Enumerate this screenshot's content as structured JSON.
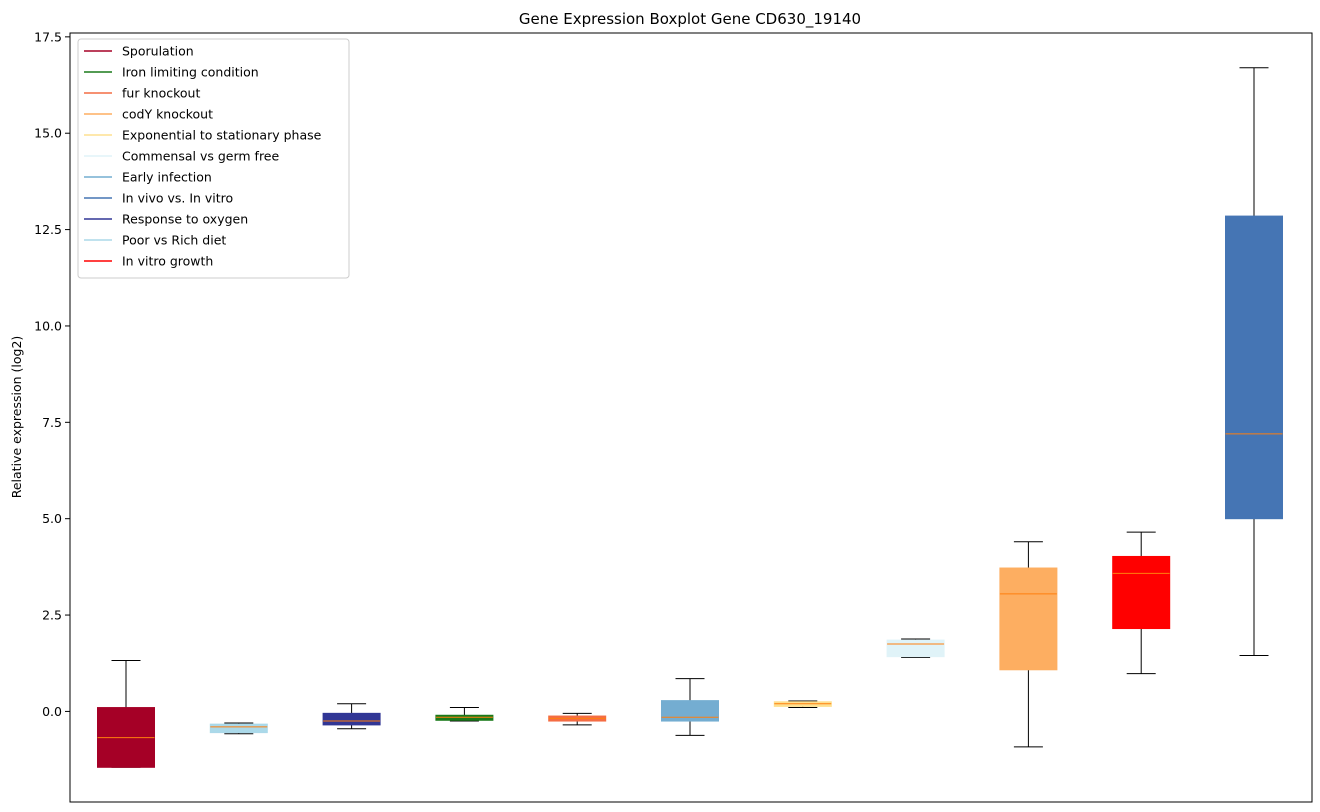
{
  "chart_data": {
    "type": "boxplot",
    "title": "Gene Expression Boxplot Gene CD630_19140",
    "xlabel": "",
    "ylabel": "Relative expression (log2)",
    "ylim": [
      -2.35,
      17.6
    ],
    "yticks": [
      0.0,
      2.5,
      5.0,
      7.5,
      10.0,
      12.5,
      15.0,
      17.5
    ],
    "ytick_labels": [
      "0.0",
      "2.5",
      "5.0",
      "7.5",
      "10.0",
      "12.5",
      "15.0",
      "17.5"
    ],
    "grid": false,
    "legend_position": "top-left",
    "legend": [
      {
        "name": "Sporulation",
        "color": "#a50026"
      },
      {
        "name": "Iron limiting condition",
        "color": "#1a7a1a"
      },
      {
        "name": "fur knockout",
        "color": "#f46d43"
      },
      {
        "name": "codY knockout",
        "color": "#fdae61"
      },
      {
        "name": "Exponential to stationary phase",
        "color": "#fee090"
      },
      {
        "name": "Commensal vs germ free",
        "color": "#e0f3f8"
      },
      {
        "name": "Early infection",
        "color": "#74add1"
      },
      {
        "name": "In vivo vs. In vitro",
        "color": "#4575b4"
      },
      {
        "name": "Response to oxygen",
        "color": "#313695"
      },
      {
        "name": "Poor vs Rich diet",
        "color": "#abd9e9"
      },
      {
        "name": "In vitro growth",
        "color": "#ff0000"
      }
    ],
    "median_color": "#ff7f0e",
    "boxes": [
      {
        "color": "#a50026",
        "whisker_low": -1.45,
        "q1": -1.45,
        "median": -0.68,
        "q3": 0.1,
        "whisker_high": 1.32
      },
      {
        "color": "#abd9e9",
        "whisker_low": -0.58,
        "q1": -0.55,
        "median": -0.4,
        "q3": -0.33,
        "whisker_high": -0.3
      },
      {
        "color": "#313695",
        "whisker_low": -0.45,
        "q1": -0.35,
        "median": -0.25,
        "q3": -0.05,
        "whisker_high": 0.2
      },
      {
        "color": "#1a7a1a",
        "whisker_low": -0.25,
        "q1": -0.23,
        "median": -0.15,
        "q3": -0.1,
        "whisker_high": 0.1
      },
      {
        "color": "#f46d43",
        "whisker_low": -0.35,
        "q1": -0.25,
        "median": -0.18,
        "q3": -0.12,
        "whisker_high": -0.05
      },
      {
        "color": "#74add1",
        "whisker_low": -0.62,
        "q1": -0.25,
        "median": -0.15,
        "q3": 0.28,
        "whisker_high": 0.85
      },
      {
        "color": "#fee090",
        "whisker_low": 0.1,
        "q1": 0.13,
        "median": 0.2,
        "q3": 0.25,
        "whisker_high": 0.27
      },
      {
        "color": "#e0f3f8",
        "whisker_low": 1.4,
        "q1": 1.42,
        "median": 1.75,
        "q3": 1.85,
        "whisker_high": 1.88
      },
      {
        "color": "#fdae61",
        "whisker_low": -0.92,
        "q1": 1.08,
        "median": 3.05,
        "q3": 3.72,
        "whisker_high": 4.4
      },
      {
        "color": "#ff0000",
        "whisker_low": 0.98,
        "q1": 2.15,
        "median": 3.58,
        "q3": 4.02,
        "whisker_high": 4.65
      },
      {
        "color": "#4575b4",
        "whisker_low": 1.45,
        "q1": 5.0,
        "median": 7.2,
        "q3": 12.85,
        "whisker_high": 16.7
      }
    ]
  }
}
